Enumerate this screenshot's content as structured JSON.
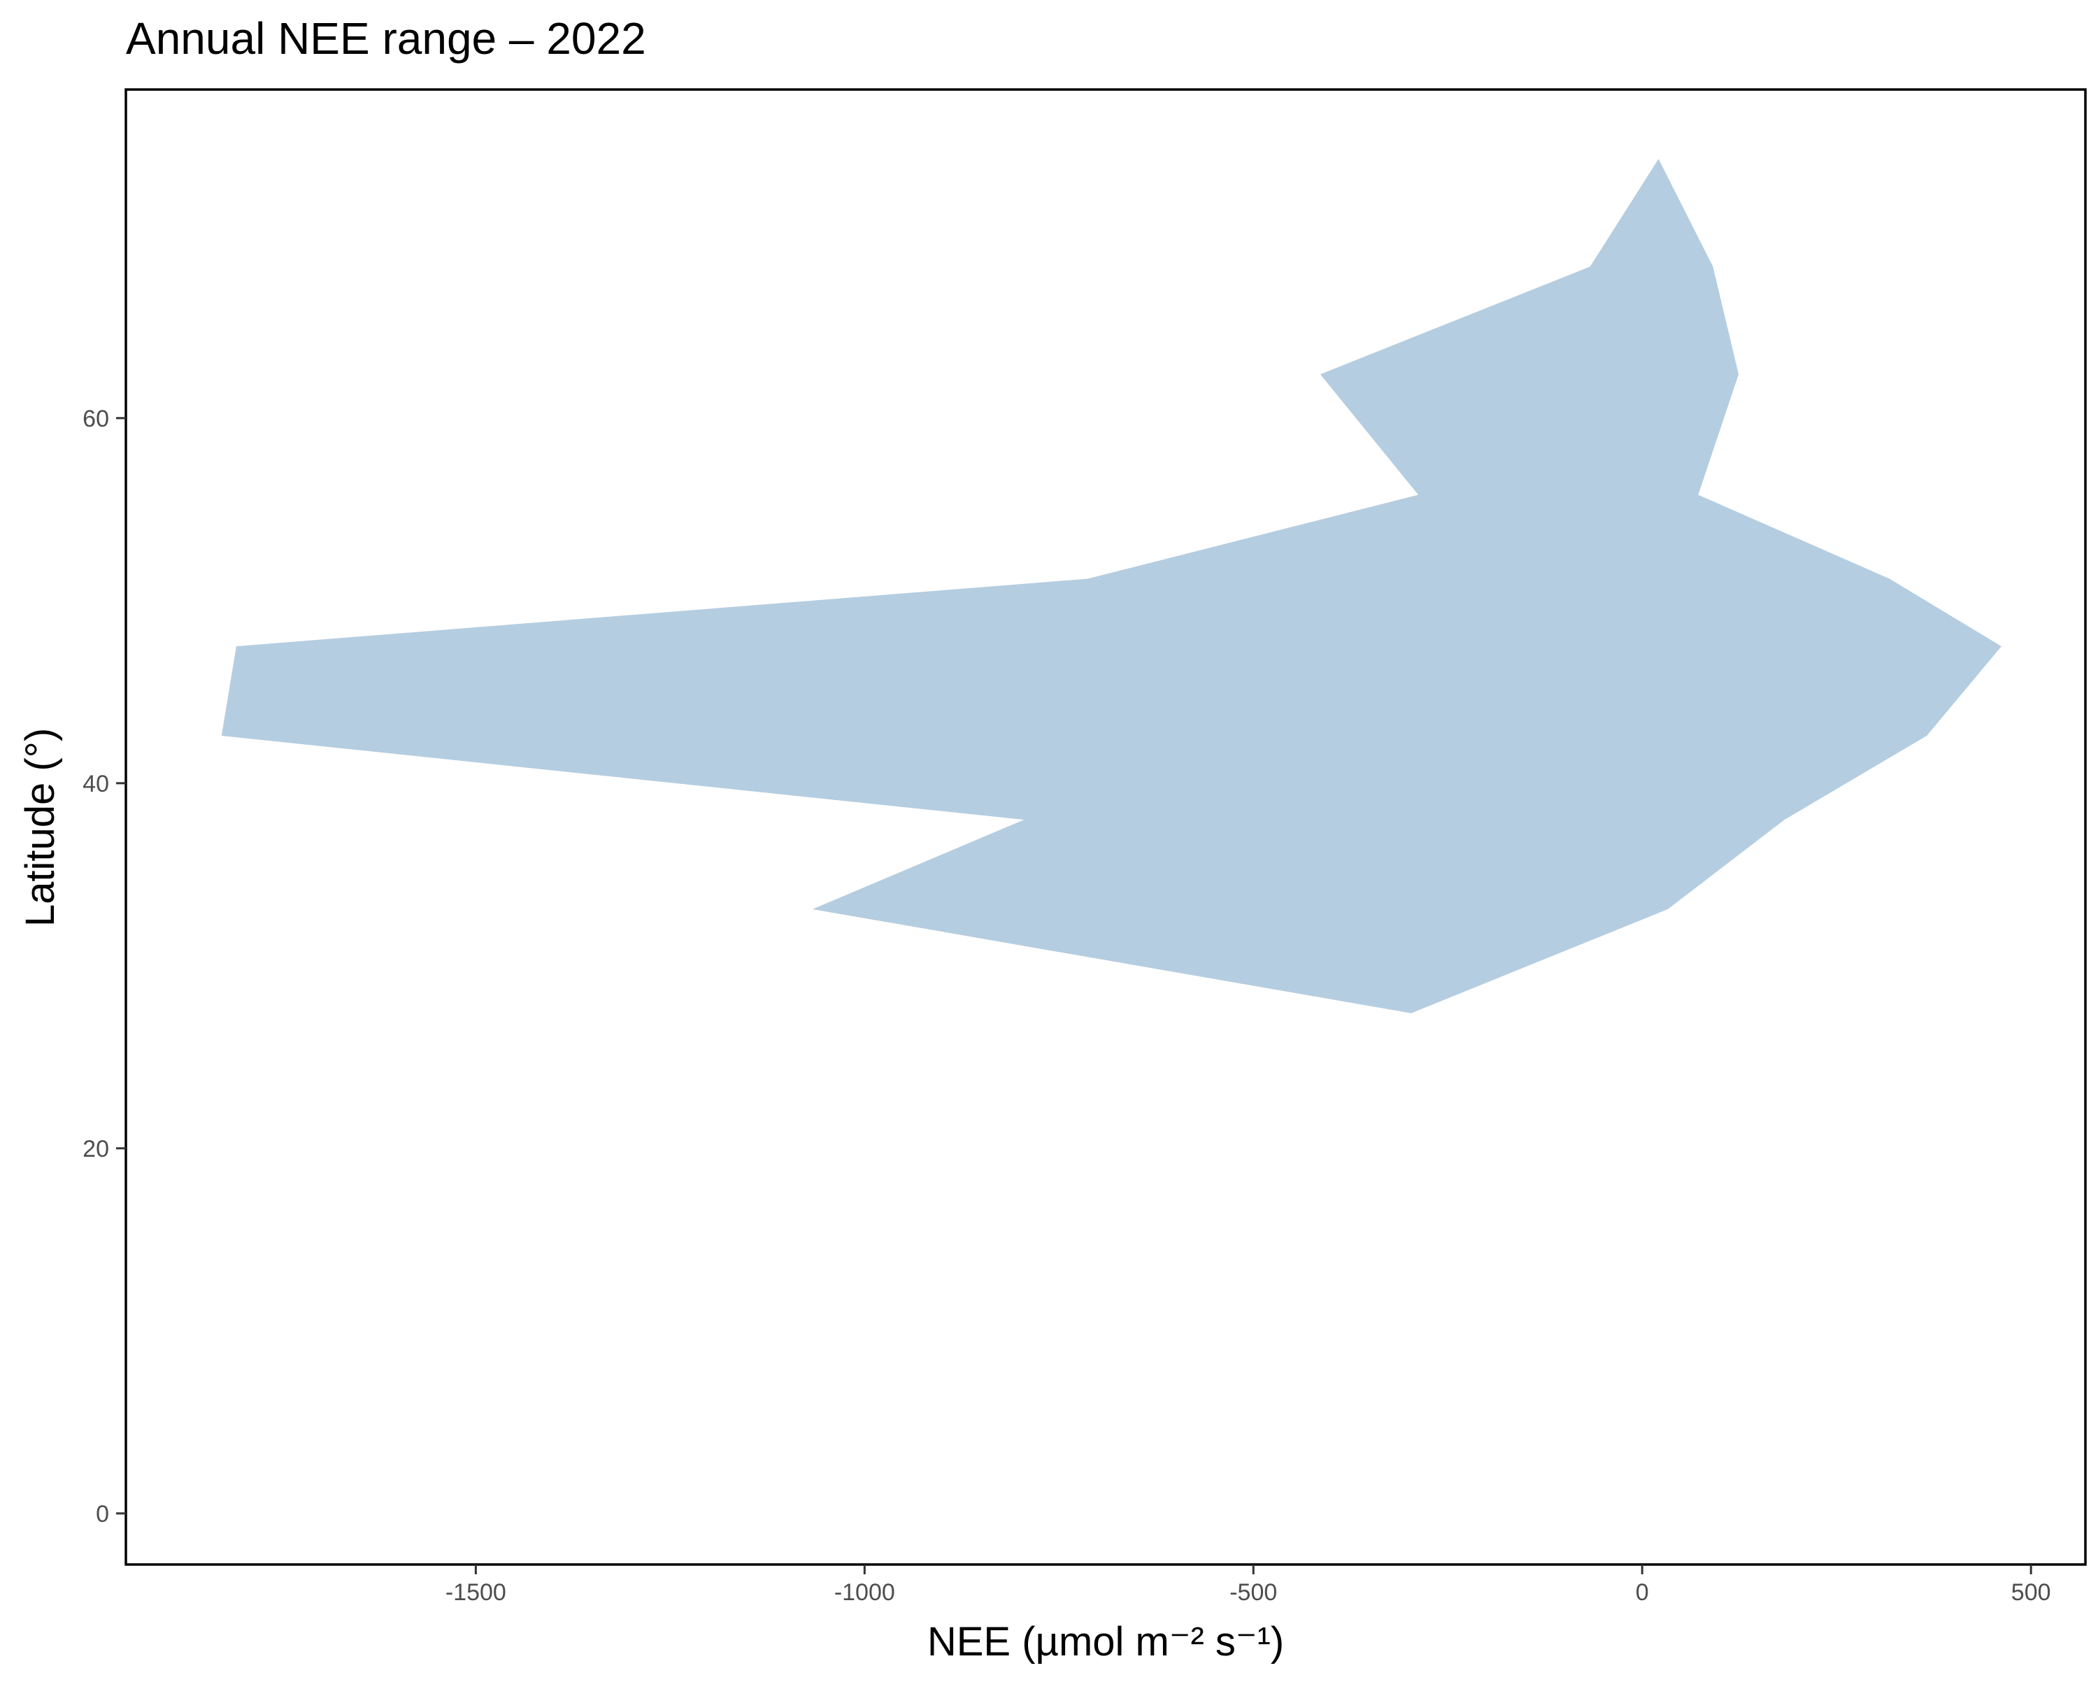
{
  "chart_data": {
    "type": "area",
    "title": "Annual NEE range – 2022",
    "xlabel": "NEE (µmol m⁻² s⁻¹)",
    "ylabel": "Latitude (°)",
    "xlim": [
      -1950,
      570
    ],
    "ylim": [
      -2.8,
      78
    ],
    "x_ticks": [
      -1500,
      -1000,
      -500,
      0,
      500
    ],
    "x_tick_labels": [
      "-1500",
      "-1000",
      "-500",
      "0",
      "500"
    ],
    "y_ticks": [
      0,
      20,
      40,
      60
    ],
    "y_tick_labels": [
      "0",
      "20",
      "40",
      "60"
    ],
    "grid": false,
    "fill_color": "#b5cde0",
    "series": [
      {
        "latitude": [
          27.4,
          33.1,
          38.0,
          42.6,
          47.5,
          51.2,
          55.8,
          62.4,
          68.3,
          74.2
        ],
        "min": [
          -297,
          -1067,
          -795,
          -1827,
          -1808,
          -713,
          -288,
          -414,
          -67,
          21
        ],
        "max": [
          -297,
          33,
          183,
          366,
          462,
          318,
          72,
          124,
          91,
          21
        ]
      }
    ]
  }
}
